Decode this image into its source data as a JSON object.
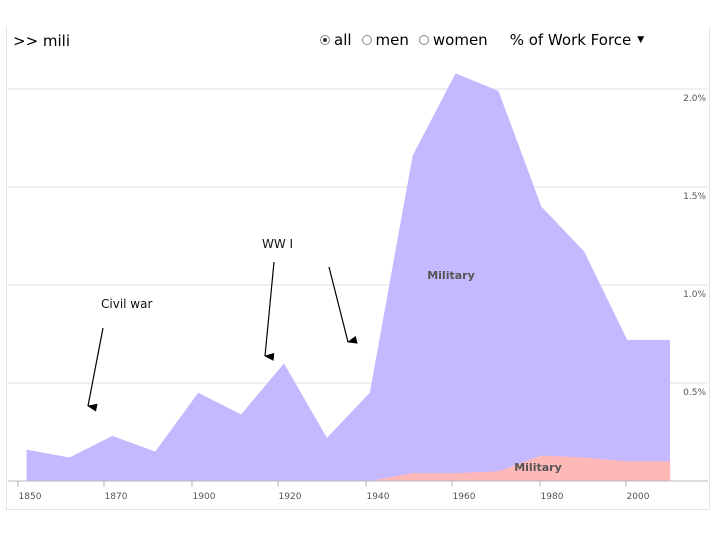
{
  "header": {
    "search_text": ">> mili",
    "radio_options": [
      {
        "label": "all",
        "checked": true
      },
      {
        "label": "men",
        "checked": false
      },
      {
        "label": "women",
        "checked": false
      }
    ],
    "measure_label": "% of Work Force"
  },
  "chart_data": {
    "type": "area",
    "x_ticks": [
      "1850",
      "1870",
      "1900",
      "1920",
      "1940",
      "1960",
      "1980",
      "2000"
    ],
    "y_ticks": [
      "0.5%",
      "1.0%",
      "1.5%",
      "2.0%"
    ],
    "ylim": [
      0,
      2.2
    ],
    "series": [
      {
        "name": "Military",
        "color": "#c4b8ff",
        "x": [
          1850,
          1860,
          1870,
          1880,
          1890,
          1900,
          1910,
          1920,
          1930,
          1940,
          1950,
          1960,
          1970,
          1980,
          1990,
          2000
        ],
        "values": [
          0.16,
          0.12,
          0.23,
          0.15,
          0.45,
          0.34,
          0.6,
          0.22,
          0.45,
          1.66,
          2.08,
          1.99,
          1.4,
          1.17,
          0.72,
          0.72
        ]
      },
      {
        "name": "Military",
        "color": "#ffb8b8",
        "x": [
          1850,
          1860,
          1870,
          1880,
          1890,
          1900,
          1910,
          1920,
          1930,
          1940,
          1950,
          1960,
          1970,
          1980,
          1990,
          2000
        ],
        "values": [
          0,
          0,
          0,
          0,
          0,
          0,
          0,
          0,
          0.0,
          0.04,
          0.04,
          0.05,
          0.13,
          0.12,
          0.1,
          0.1
        ]
      }
    ],
    "annotations": [
      {
        "text": "Civil war"
      },
      {
        "text": "WW I"
      }
    ]
  }
}
